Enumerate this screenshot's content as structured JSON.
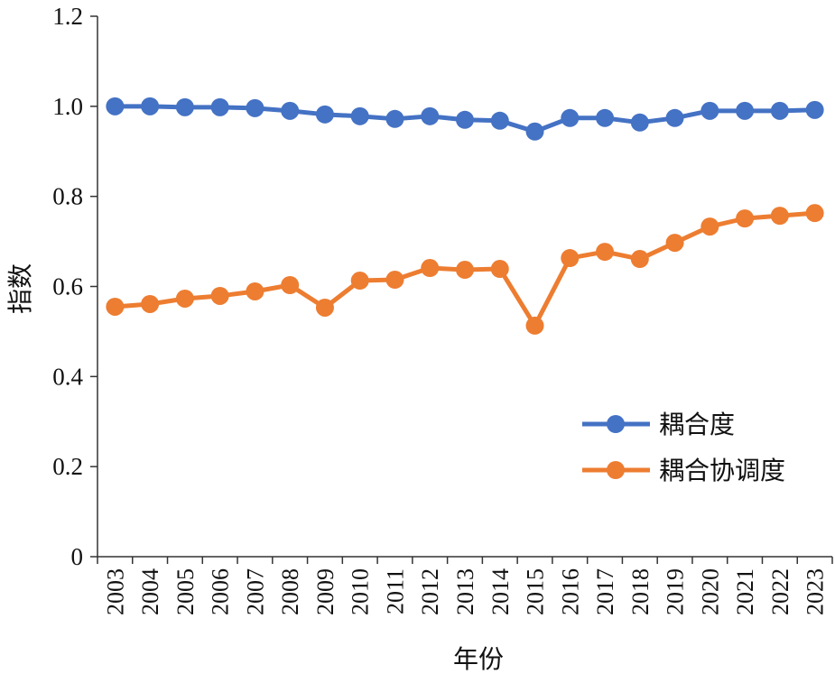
{
  "chart_data": {
    "type": "line",
    "title": "",
    "xlabel": "年份",
    "ylabel": "指数",
    "ylim": [
      0,
      1.2
    ],
    "yticks": [
      "0",
      "0.2",
      "0.4",
      "0.6",
      "0.8",
      "1.0",
      "1.2"
    ],
    "ytick_values": [
      0,
      0.2,
      0.4,
      0.6,
      0.8,
      1.0,
      1.2
    ],
    "grid": false,
    "legend_position": "bottom-right",
    "categories": [
      "2003",
      "2004",
      "2005",
      "2006",
      "2007",
      "2008",
      "2009",
      "2010",
      "2011",
      "2012",
      "2013",
      "2014",
      "2015",
      "2016",
      "2017",
      "2018",
      "2019",
      "2020",
      "2021",
      "2022",
      "2023"
    ],
    "series": [
      {
        "name": "耦合度",
        "color": "#4472C4",
        "values": [
          1.0,
          1.0,
          0.998,
          0.998,
          0.996,
          0.99,
          0.982,
          0.978,
          0.972,
          0.978,
          0.97,
          0.968,
          0.944,
          0.974,
          0.974,
          0.964,
          0.974,
          0.99,
          0.99,
          0.99,
          0.992
        ]
      },
      {
        "name": "耦合协调度",
        "color": "#ED7D31",
        "values": [
          0.555,
          0.561,
          0.573,
          0.579,
          0.589,
          0.603,
          0.553,
          0.613,
          0.615,
          0.641,
          0.637,
          0.639,
          0.513,
          0.663,
          0.677,
          0.661,
          0.697,
          0.733,
          0.751,
          0.757,
          0.763
        ]
      }
    ]
  }
}
